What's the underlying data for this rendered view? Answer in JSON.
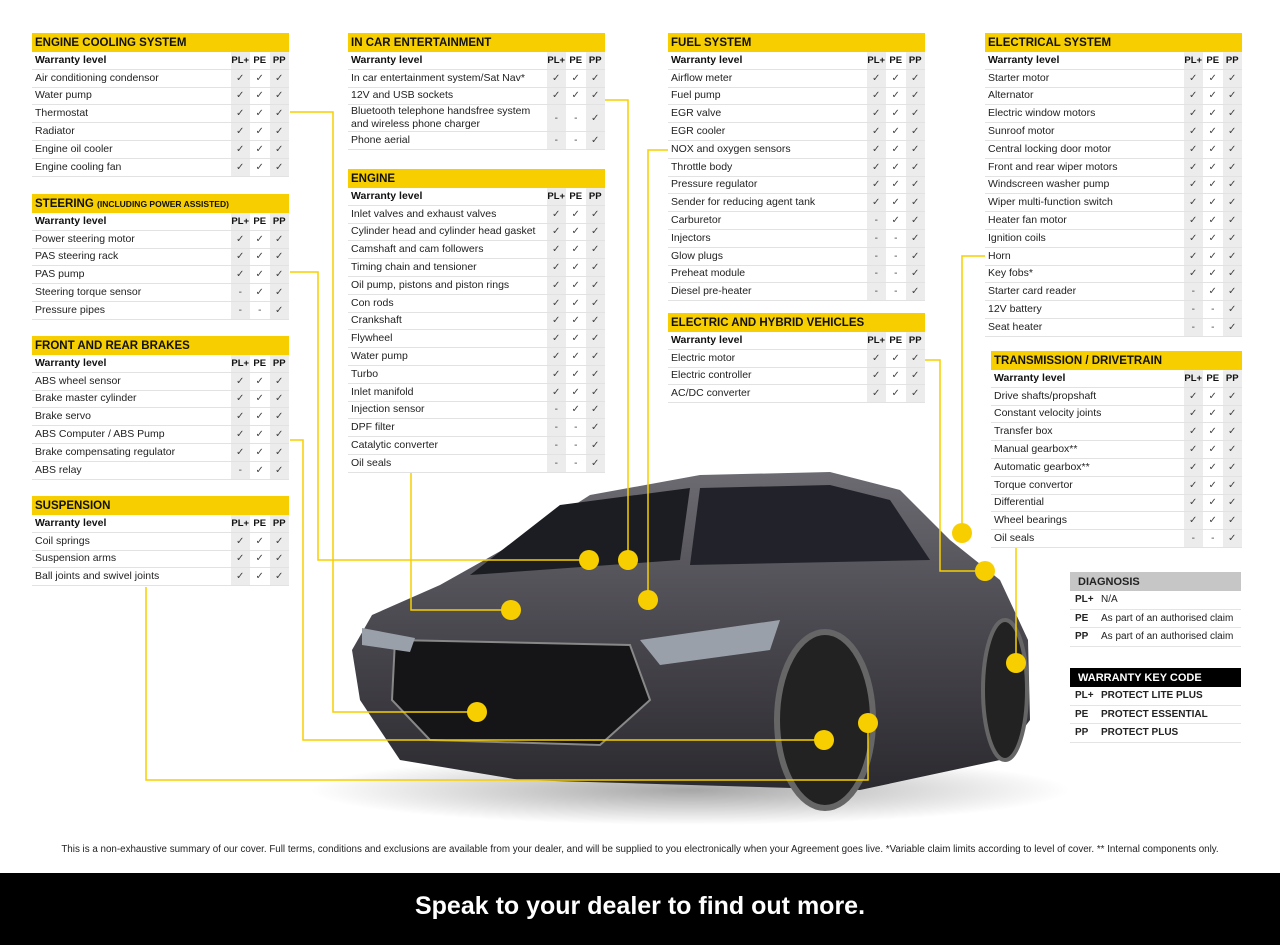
{
  "columns": {
    "label": "Warranty level",
    "pl": "PL+",
    "pe": "PE",
    "pp": "PP"
  },
  "colors": {
    "accent": "#f7cf00",
    "band": "#000000",
    "diagnosis_header": "#c6c6c6"
  },
  "tables": [
    {
      "id": "cooling",
      "title": "ENGINE COOLING SYSTEM",
      "rows": [
        [
          "Air conditioning condensor",
          "✓",
          "✓",
          "✓"
        ],
        [
          "Water pump",
          "✓",
          "✓",
          "✓"
        ],
        [
          "Thermostat",
          "✓",
          "✓",
          "✓"
        ],
        [
          "Radiator",
          "✓",
          "✓",
          "✓"
        ],
        [
          "Engine oil cooler",
          "✓",
          "✓",
          "✓"
        ],
        [
          "Engine cooling fan",
          "✓",
          "✓",
          "✓"
        ]
      ]
    },
    {
      "id": "steering",
      "title": "STEERING",
      "subtitle": "(INCLUDING POWER ASSISTED)",
      "rows": [
        [
          "Power steering motor",
          "✓",
          "✓",
          "✓"
        ],
        [
          "PAS steering rack",
          "✓",
          "✓",
          "✓"
        ],
        [
          "PAS pump",
          "✓",
          "✓",
          "✓"
        ],
        [
          "Steering torque sensor",
          "-",
          "✓",
          "✓"
        ],
        [
          "Pressure pipes",
          "-",
          "-",
          "✓"
        ]
      ]
    },
    {
      "id": "brakes",
      "title": "FRONT AND REAR BRAKES",
      "rows": [
        [
          "ABS wheel sensor",
          "✓",
          "✓",
          "✓"
        ],
        [
          "Brake master cylinder",
          "✓",
          "✓",
          "✓"
        ],
        [
          "Brake servo",
          "✓",
          "✓",
          "✓"
        ],
        [
          "ABS Computer / ABS Pump",
          "✓",
          "✓",
          "✓"
        ],
        [
          "Brake compensating regulator",
          "✓",
          "✓",
          "✓"
        ],
        [
          "ABS relay",
          "-",
          "✓",
          "✓"
        ]
      ]
    },
    {
      "id": "suspension",
      "title": "SUSPENSION",
      "rows": [
        [
          "Coil springs",
          "✓",
          "✓",
          "✓"
        ],
        [
          "Suspension arms",
          "✓",
          "✓",
          "✓"
        ],
        [
          "Ball joints and swivel joints",
          "✓",
          "✓",
          "✓"
        ]
      ]
    },
    {
      "id": "ice",
      "title": "IN CAR ENTERTAINMENT",
      "rows": [
        [
          "In car entertainment system/Sat Nav*",
          "✓",
          "✓",
          "✓"
        ],
        [
          "12V and USB sockets",
          "✓",
          "✓",
          "✓"
        ],
        [
          "Bluetooth telephone handsfree system and wireless phone charger",
          "-",
          "-",
          "✓"
        ],
        [
          "Phone aerial",
          "-",
          "-",
          "✓"
        ]
      ]
    },
    {
      "id": "engine",
      "title": "ENGINE",
      "rows": [
        [
          "Inlet valves and exhaust valves",
          "✓",
          "✓",
          "✓"
        ],
        [
          "Cylinder head and cylinder head gasket",
          "✓",
          "✓",
          "✓"
        ],
        [
          "Camshaft and cam followers",
          "✓",
          "✓",
          "✓"
        ],
        [
          "Timing chain and tensioner",
          "✓",
          "✓",
          "✓"
        ],
        [
          "Oil pump, pistons and piston rings",
          "✓",
          "✓",
          "✓"
        ],
        [
          "Con rods",
          "✓",
          "✓",
          "✓"
        ],
        [
          "Crankshaft",
          "✓",
          "✓",
          "✓"
        ],
        [
          "Flywheel",
          "✓",
          "✓",
          "✓"
        ],
        [
          "Water pump",
          "✓",
          "✓",
          "✓"
        ],
        [
          "Turbo",
          "✓",
          "✓",
          "✓"
        ],
        [
          "Inlet manifold",
          "✓",
          "✓",
          "✓"
        ],
        [
          "Injection sensor",
          "-",
          "✓",
          "✓"
        ],
        [
          "DPF filter",
          "-",
          "-",
          "✓"
        ],
        [
          "Catalytic converter",
          "-",
          "-",
          "✓"
        ],
        [
          "Oil seals",
          "-",
          "-",
          "✓"
        ]
      ]
    },
    {
      "id": "fuel",
      "title": "FUEL SYSTEM",
      "rows": [
        [
          "Airflow meter",
          "✓",
          "✓",
          "✓"
        ],
        [
          "Fuel pump",
          "✓",
          "✓",
          "✓"
        ],
        [
          "EGR valve",
          "✓",
          "✓",
          "✓"
        ],
        [
          "EGR cooler",
          "✓",
          "✓",
          "✓"
        ],
        [
          "NOX and oxygen sensors",
          "✓",
          "✓",
          "✓"
        ],
        [
          "Throttle body",
          "✓",
          "✓",
          "✓"
        ],
        [
          "Pressure regulator",
          "✓",
          "✓",
          "✓"
        ],
        [
          "Sender for reducing agent tank",
          "✓",
          "✓",
          "✓"
        ],
        [
          "Carburetor",
          "-",
          "✓",
          "✓"
        ],
        [
          "Injectors",
          "-",
          "-",
          "✓"
        ],
        [
          "Glow plugs",
          "-",
          "-",
          "✓"
        ],
        [
          "Preheat module",
          "-",
          "-",
          "✓"
        ],
        [
          "Diesel pre-heater",
          "-",
          "-",
          "✓"
        ]
      ]
    },
    {
      "id": "ehv",
      "title": "ELECTRIC AND HYBRID VEHICLES",
      "rows": [
        [
          "Electric motor",
          "✓",
          "✓",
          "✓"
        ],
        [
          "Electric controller",
          "✓",
          "✓",
          "✓"
        ],
        [
          "AC/DC converter",
          "✓",
          "✓",
          "✓"
        ]
      ]
    },
    {
      "id": "electrical",
      "title": "ELECTRICAL SYSTEM",
      "rows": [
        [
          "Starter motor",
          "✓",
          "✓",
          "✓"
        ],
        [
          "Alternator",
          "✓",
          "✓",
          "✓"
        ],
        [
          "Electric window motors",
          "✓",
          "✓",
          "✓"
        ],
        [
          "Sunroof motor",
          "✓",
          "✓",
          "✓"
        ],
        [
          "Central locking door motor",
          "✓",
          "✓",
          "✓"
        ],
        [
          "Front and rear wiper motors",
          "✓",
          "✓",
          "✓"
        ],
        [
          "Windscreen washer pump",
          "✓",
          "✓",
          "✓"
        ],
        [
          "Wiper multi-function switch",
          "✓",
          "✓",
          "✓"
        ],
        [
          "Heater fan motor",
          "✓",
          "✓",
          "✓"
        ],
        [
          "Ignition coils",
          "✓",
          "✓",
          "✓"
        ],
        [
          "Horn",
          "✓",
          "✓",
          "✓"
        ],
        [
          "Key fobs*",
          "✓",
          "✓",
          "✓"
        ],
        [
          "Starter card reader",
          "-",
          "✓",
          "✓"
        ],
        [
          "12V battery",
          "-",
          "-",
          "✓"
        ],
        [
          "Seat heater",
          "-",
          "-",
          "✓"
        ]
      ]
    },
    {
      "id": "transmission",
      "title": "TRANSMISSION / DRIVETRAIN",
      "rows": [
        [
          "Drive shafts/propshaft",
          "✓",
          "✓",
          "✓"
        ],
        [
          "Constant velocity joints",
          "✓",
          "✓",
          "✓"
        ],
        [
          "Transfer box",
          "✓",
          "✓",
          "✓"
        ],
        [
          "Manual gearbox**",
          "✓",
          "✓",
          "✓"
        ],
        [
          "Automatic gearbox**",
          "✓",
          "✓",
          "✓"
        ],
        [
          "Torque convertor",
          "✓",
          "✓",
          "✓"
        ],
        [
          "Differential",
          "✓",
          "✓",
          "✓"
        ],
        [
          "Wheel bearings",
          "✓",
          "✓",
          "✓"
        ],
        [
          "Oil seals",
          "-",
          "-",
          "✓"
        ]
      ]
    }
  ],
  "diagnosis": {
    "title": "DIAGNOSIS",
    "rows": [
      [
        "PL+",
        "N/A"
      ],
      [
        "PE",
        "As part of an authorised claim"
      ],
      [
        "PP",
        "As part of an authorised claim"
      ]
    ]
  },
  "warranty_key": {
    "title": "WARRANTY KEY CODE",
    "rows": [
      [
        "PL+",
        "PROTECT LITE PLUS"
      ],
      [
        "PE",
        "PROTECT ESSENTIAL"
      ],
      [
        "PP",
        "PROTECT PLUS"
      ]
    ]
  },
  "footnote": "This is a non-exhaustive summary of our cover. Full terms, conditions and exclusions are available from your dealer, and will be supplied to you electronically when your Agreement goes live. *Variable claim limits according to level of cover. ** Internal components only.",
  "banner": "Speak to your dealer to find out more."
}
